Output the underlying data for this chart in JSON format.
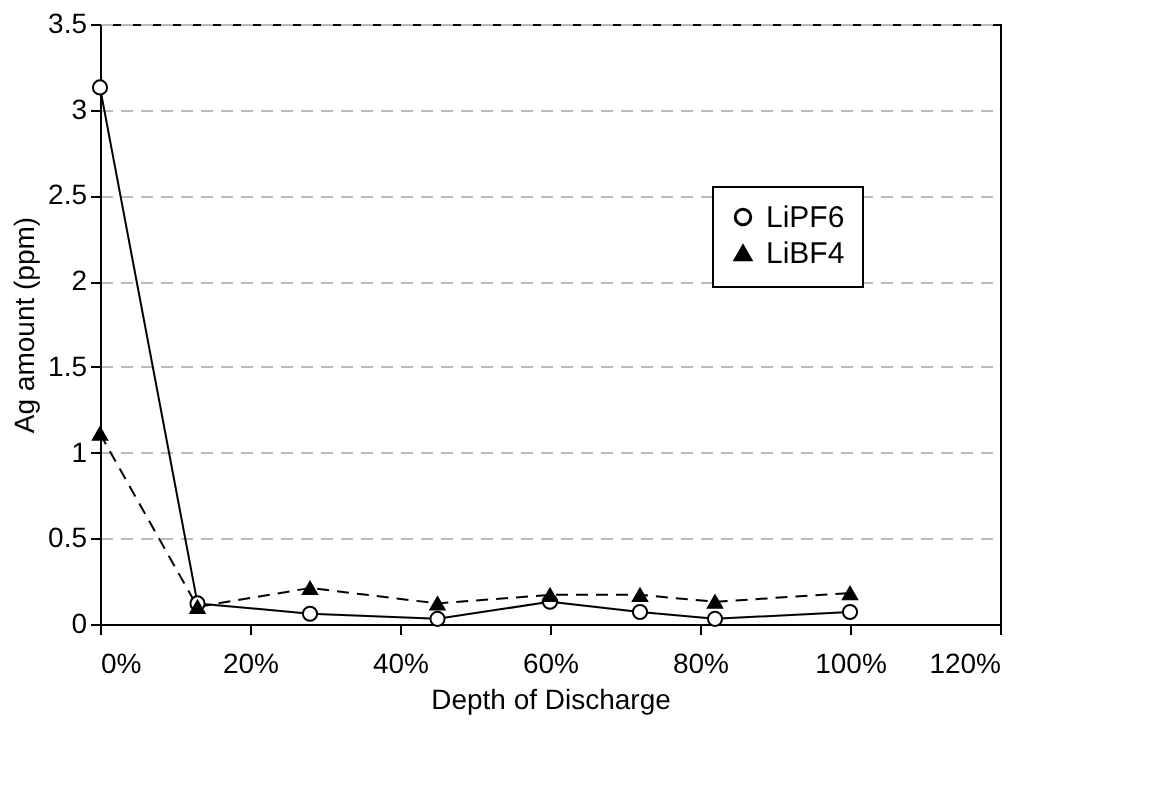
{
  "chart_data": {
    "type": "line",
    "xlabel": "Depth of Discharge",
    "ylabel": "Ag amount (ppm)",
    "x": [
      0,
      13,
      28,
      45,
      60,
      72,
      82,
      100
    ],
    "series": [
      {
        "name": "LiPF6",
        "color": "#000000",
        "marker": "circle",
        "line_style": "solid",
        "values": [
          3.13,
          0.12,
          0.06,
          0.03,
          0.13,
          0.07,
          0.03,
          0.07
        ]
      },
      {
        "name": "LiBF4",
        "color": "#000000",
        "marker": "triangle",
        "line_style": "dashed",
        "values": [
          1.11,
          0.1,
          0.21,
          0.12,
          0.17,
          0.17,
          0.13,
          0.18
        ]
      }
    ],
    "xlim": [
      0,
      120
    ],
    "xticks": [
      {
        "value": 0,
        "label": "0%"
      },
      {
        "value": 20,
        "label": "20%"
      },
      {
        "value": 40,
        "label": "40%"
      },
      {
        "value": 60,
        "label": "60%"
      },
      {
        "value": 80,
        "label": "80%"
      },
      {
        "value": 100,
        "label": "100%"
      },
      {
        "value": 120,
        "label": "120%"
      }
    ],
    "ylim": [
      0,
      3.5
    ],
    "yticks": [
      0,
      0.5,
      1,
      1.5,
      2,
      2.5,
      3,
      3.5
    ],
    "grid": "y",
    "legend": "right"
  }
}
